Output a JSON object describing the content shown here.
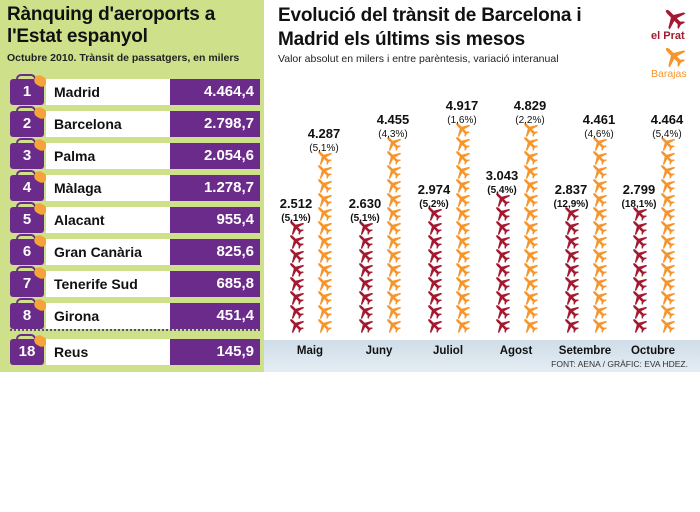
{
  "left_panel": {
    "title": "Rànquing d'aeroports a l'Estat espanyol",
    "subtitle": "Octubre 2010. Trànsit de passatgers, en milers",
    "rows": [
      {
        "rank": "1",
        "name": "Madrid",
        "value": "4.464,4"
      },
      {
        "rank": "2",
        "name": "Barcelona",
        "value": "2.798,7"
      },
      {
        "rank": "3",
        "name": "Palma",
        "value": "2.054,6"
      },
      {
        "rank": "4",
        "name": "Màlaga",
        "value": "1.278,7"
      },
      {
        "rank": "5",
        "name": "Alacant",
        "value": "955,4"
      },
      {
        "rank": "6",
        "name": "Gran Canària",
        "value": "825,6"
      },
      {
        "rank": "7",
        "name": "Tenerife Sud",
        "value": "685,8"
      },
      {
        "rank": "8",
        "name": "Girona",
        "value": "451,4"
      },
      {
        "rank": "18",
        "name": "Reus",
        "value": "145,9"
      }
    ]
  },
  "colors": {
    "prat": "#a3192f",
    "barajas": "#f6952d",
    "rank_bg": "#6b2b8a",
    "panel_bg": "#cfe08a"
  },
  "icons": {
    "plane": "airplane-icon",
    "suitcase": "suitcase-icon"
  },
  "chart_data": {
    "type": "bar",
    "title": "Evolució del trànsit de Barcelona i Madrid els últims sis mesos",
    "subtitle": "Valor absolut en milers i entre parèntesis, variació interanual",
    "categories": [
      "Maig",
      "Juny",
      "Juliol",
      "Agost",
      "Setembre",
      "Octubre"
    ],
    "series": [
      {
        "name": "el Prat",
        "values": [
          2512,
          2630,
          2974,
          3043,
          2837,
          2799
        ],
        "labels": [
          "2.512",
          "2.630",
          "2.974",
          "3.043",
          "2.837",
          "2.799"
        ],
        "variation": [
          "(5,1%)",
          "(5,1%)",
          "(5,2%)",
          "(5,4%)",
          "(12,9%)",
          "(18,1%)"
        ]
      },
      {
        "name": "Barajas",
        "values": [
          4287,
          4455,
          4917,
          4829,
          4461,
          4464
        ],
        "labels": [
          "4.287",
          "4.455",
          "4.917",
          "4.829",
          "4.461",
          "4.464"
        ],
        "variation": [
          "(5,1%)",
          "(4,3%)",
          "(1,6%)",
          "(2,2%)",
          "(4,6%)",
          "(5,4%)"
        ]
      }
    ],
    "legend": "top-right",
    "source": "FONT: AENA / GRÀFIC: EVA HDEZ."
  }
}
